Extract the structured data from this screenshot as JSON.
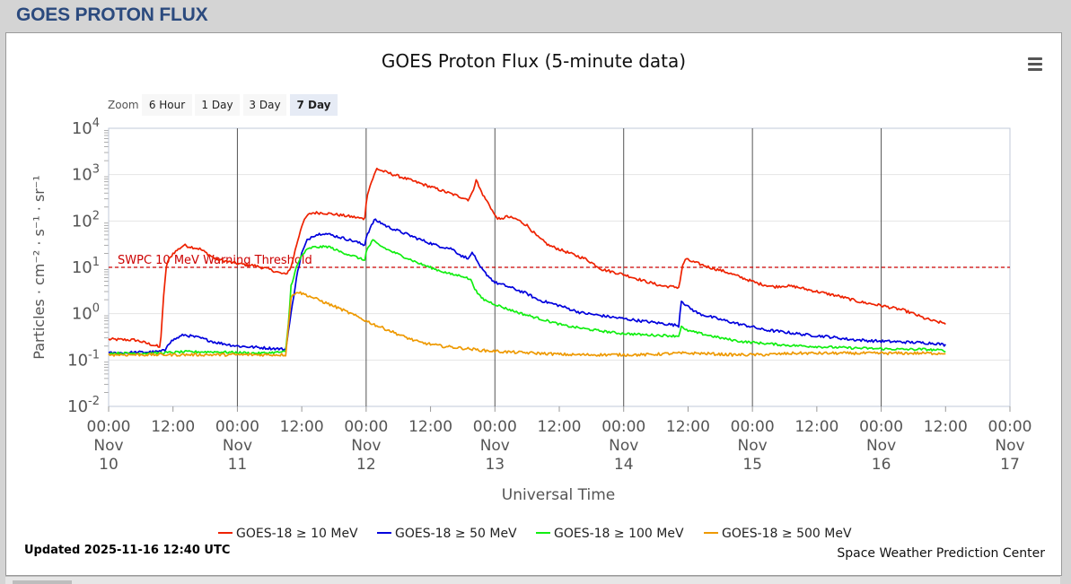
{
  "page": {
    "heading": "GOES PROTON FLUX"
  },
  "chart_data": {
    "type": "line",
    "title": "GOES Proton Flux (5-minute data)",
    "xlabel": "Universal Time",
    "ylabel": "Particles · cm⁻² · s⁻¹ · sr⁻¹",
    "yscale": "log",
    "ylim_exponents": [
      -2,
      4
    ],
    "y_tick_labels": [
      {
        "exp": 4,
        "base": "10",
        "sup": "4"
      },
      {
        "exp": 3,
        "base": "10",
        "sup": "3"
      },
      {
        "exp": 2,
        "base": "10",
        "sup": "2"
      },
      {
        "exp": 1,
        "base": "10",
        "sup": "1"
      },
      {
        "exp": 0,
        "base": "10",
        "sup": "0"
      },
      {
        "exp": -1,
        "base": "10",
        "sup": "-1"
      },
      {
        "exp": -2,
        "base": "10",
        "sup": "-2"
      }
    ],
    "x_range_hours": [
      0,
      168
    ],
    "x_ticks": [
      {
        "t": 0,
        "time": "00:00",
        "month": "Nov",
        "day": "10"
      },
      {
        "t": 12,
        "time": "12:00"
      },
      {
        "t": 24,
        "time": "00:00",
        "month": "Nov",
        "day": "11"
      },
      {
        "t": 36,
        "time": "12:00"
      },
      {
        "t": 48,
        "time": "00:00",
        "month": "Nov",
        "day": "12"
      },
      {
        "t": 60,
        "time": "12:00"
      },
      {
        "t": 72,
        "time": "00:00",
        "month": "Nov",
        "day": "13"
      },
      {
        "t": 84,
        "time": "12:00"
      },
      {
        "t": 96,
        "time": "00:00",
        "month": "Nov",
        "day": "14"
      },
      {
        "t": 108,
        "time": "12:00"
      },
      {
        "t": 120,
        "time": "00:00",
        "month": "Nov",
        "day": "15"
      },
      {
        "t": 132,
        "time": "12:00"
      },
      {
        "t": 144,
        "time": "00:00",
        "month": "Nov",
        "day": "16"
      },
      {
        "t": 156,
        "time": "12:00"
      },
      {
        "t": 168,
        "time": "00:00",
        "month": "Nov",
        "day": "17"
      }
    ],
    "day_divider_hours": [
      24,
      48,
      72,
      96,
      120,
      144
    ],
    "threshold": {
      "value": 10,
      "label": "SWPC 10 MeV Warning Threshold",
      "color": "#cc0000"
    },
    "series": [
      {
        "name": "GOES-18 ≥ 10 MeV",
        "color": "#ee2200",
        "noise": 0.03,
        "points": [
          [
            0,
            0.28
          ],
          [
            5,
            0.27
          ],
          [
            9,
            0.2
          ],
          [
            9.6,
            0.18
          ],
          [
            10.2,
            2
          ],
          [
            10.8,
            12
          ],
          [
            12,
            20
          ],
          [
            14,
            30
          ],
          [
            17,
            25
          ],
          [
            20,
            15
          ],
          [
            24,
            12
          ],
          [
            27,
            11
          ],
          [
            30,
            9
          ],
          [
            32,
            7.5
          ],
          [
            33,
            7
          ],
          [
            34,
            10
          ],
          [
            35,
            30
          ],
          [
            36,
            80
          ],
          [
            37,
            130
          ],
          [
            38,
            150
          ],
          [
            40,
            150
          ],
          [
            43,
            135
          ],
          [
            46,
            120
          ],
          [
            47.7,
            110
          ],
          [
            48.2,
            380
          ],
          [
            49,
            700
          ],
          [
            50,
            1350
          ],
          [
            51,
            1200
          ],
          [
            52,
            1100
          ],
          [
            55,
            850
          ],
          [
            58,
            650
          ],
          [
            61,
            500
          ],
          [
            64,
            380
          ],
          [
            66,
            320
          ],
          [
            67,
            290
          ],
          [
            67.8,
            400
          ],
          [
            68.5,
            800
          ],
          [
            69,
            550
          ],
          [
            70,
            330
          ],
          [
            71,
            220
          ],
          [
            72,
            130
          ],
          [
            73,
            105
          ],
          [
            74,
            125
          ],
          [
            76,
            110
          ],
          [
            78,
            80
          ],
          [
            80,
            45
          ],
          [
            82,
            30
          ],
          [
            86,
            20
          ],
          [
            89,
            15
          ],
          [
            92,
            9
          ],
          [
            96,
            7
          ],
          [
            100,
            5
          ],
          [
            103,
            4
          ],
          [
            105,
            3.8
          ],
          [
            106.3,
            3.7
          ],
          [
            106.9,
            10
          ],
          [
            107.5,
            15
          ],
          [
            109,
            13
          ],
          [
            112,
            10
          ],
          [
            115,
            8
          ],
          [
            118,
            6
          ],
          [
            121,
            4.5
          ],
          [
            124,
            3.8
          ],
          [
            126,
            4
          ],
          [
            128,
            3.8
          ],
          [
            132,
            3
          ],
          [
            136,
            2.4
          ],
          [
            140,
            1.8
          ],
          [
            144,
            1.5
          ],
          [
            148,
            1.2
          ],
          [
            150,
            1
          ],
          [
            152,
            0.8
          ],
          [
            154,
            0.68
          ],
          [
            156,
            0.62
          ]
        ]
      },
      {
        "name": "GOES-18 ≥ 50 MeV",
        "color": "#0000dd",
        "noise": 0.03,
        "points": [
          [
            0,
            0.14
          ],
          [
            9,
            0.15
          ],
          [
            10.5,
            0.16
          ],
          [
            11,
            0.22
          ],
          [
            12,
            0.27
          ],
          [
            14,
            0.35
          ],
          [
            17,
            0.3
          ],
          [
            20,
            0.24
          ],
          [
            24,
            0.2
          ],
          [
            30,
            0.18
          ],
          [
            33,
            0.17
          ],
          [
            34,
            1
          ],
          [
            35,
            6
          ],
          [
            36,
            20
          ],
          [
            37,
            38
          ],
          [
            38,
            48
          ],
          [
            40,
            55
          ],
          [
            43,
            45
          ],
          [
            46,
            36
          ],
          [
            47.7,
            30
          ],
          [
            48.1,
            50
          ],
          [
            48.8,
            70
          ],
          [
            49.5,
            105
          ],
          [
            50.5,
            95
          ],
          [
            52,
            75
          ],
          [
            55,
            55
          ],
          [
            58,
            40
          ],
          [
            61,
            30
          ],
          [
            64,
            25
          ],
          [
            66,
            17
          ],
          [
            67.3,
            16
          ],
          [
            67.8,
            22
          ],
          [
            68.4,
            15
          ],
          [
            69,
            11
          ],
          [
            70,
            8
          ],
          [
            72,
            4.7
          ],
          [
            74,
            4
          ],
          [
            76,
            3.3
          ],
          [
            78,
            2.7
          ],
          [
            80,
            2
          ],
          [
            84,
            1.5
          ],
          [
            88,
            1.05
          ],
          [
            92,
            0.9
          ],
          [
            96,
            0.78
          ],
          [
            100,
            0.68
          ],
          [
            104,
            0.6
          ],
          [
            106.3,
            0.55
          ],
          [
            106.7,
            2
          ],
          [
            107,
            1.8
          ],
          [
            108,
            1.4
          ],
          [
            110,
            1
          ],
          [
            114,
            0.75
          ],
          [
            118,
            0.58
          ],
          [
            120,
            0.52
          ],
          [
            122,
            0.45
          ],
          [
            126,
            0.4
          ],
          [
            130,
            0.35
          ],
          [
            134,
            0.32
          ],
          [
            138,
            0.28
          ],
          [
            142,
            0.26
          ],
          [
            146,
            0.25
          ],
          [
            150,
            0.24
          ],
          [
            154,
            0.23
          ],
          [
            156,
            0.21
          ]
        ]
      },
      {
        "name": "GOES-18 ≥ 100 MeV",
        "color": "#11ee11",
        "noise": 0.025,
        "points": [
          [
            0,
            0.14
          ],
          [
            9,
            0.14
          ],
          [
            14,
            0.15
          ],
          [
            20,
            0.15
          ],
          [
            28,
            0.14
          ],
          [
            33,
            0.15
          ],
          [
            33.6,
            0.8
          ],
          [
            34,
            4
          ],
          [
            35,
            10
          ],
          [
            36,
            18
          ],
          [
            37,
            24
          ],
          [
            38,
            27
          ],
          [
            41,
            28
          ],
          [
            43,
            22
          ],
          [
            46,
            17
          ],
          [
            47.7,
            14
          ],
          [
            48.1,
            24
          ],
          [
            48.7,
            30
          ],
          [
            49.2,
            38
          ],
          [
            50.5,
            30
          ],
          [
            52,
            24
          ],
          [
            55,
            17
          ],
          [
            58,
            12
          ],
          [
            61,
            9
          ],
          [
            64,
            7
          ],
          [
            66,
            6.5
          ],
          [
            67.3,
            5.5
          ],
          [
            67.7,
            5
          ],
          [
            68.4,
            3.2
          ],
          [
            69,
            2.5
          ],
          [
            70,
            2
          ],
          [
            72,
            1.6
          ],
          [
            74,
            1.3
          ],
          [
            77,
            1
          ],
          [
            80,
            0.8
          ],
          [
            85,
            0.55
          ],
          [
            90,
            0.45
          ],
          [
            95,
            0.38
          ],
          [
            100,
            0.35
          ],
          [
            106.3,
            0.33
          ],
          [
            106.7,
            0.55
          ],
          [
            107.3,
            0.45
          ],
          [
            110,
            0.38
          ],
          [
            114,
            0.3
          ],
          [
            118,
            0.25
          ],
          [
            122,
            0.23
          ],
          [
            126,
            0.21
          ],
          [
            130,
            0.2
          ],
          [
            134,
            0.19
          ],
          [
            140,
            0.18
          ],
          [
            148,
            0.17
          ],
          [
            152,
            0.17
          ],
          [
            156,
            0.16
          ]
        ]
      },
      {
        "name": "GOES-18 ≥ 500 MeV",
        "color": "#ee9900",
        "noise": 0.03,
        "points": [
          [
            0,
            0.13
          ],
          [
            9,
            0.13
          ],
          [
            14,
            0.13
          ],
          [
            20,
            0.13
          ],
          [
            28,
            0.13
          ],
          [
            33,
            0.13
          ],
          [
            33.6,
            0.7
          ],
          [
            34,
            2.2
          ],
          [
            35,
            3
          ],
          [
            37,
            2.5
          ],
          [
            40,
            1.8
          ],
          [
            43,
            1.3
          ],
          [
            46,
            0.9
          ],
          [
            48,
            0.7
          ],
          [
            50,
            0.55
          ],
          [
            52,
            0.45
          ],
          [
            55,
            0.32
          ],
          [
            58,
            0.24
          ],
          [
            62,
            0.2
          ],
          [
            66,
            0.18
          ],
          [
            70,
            0.16
          ],
          [
            74,
            0.15
          ],
          [
            80,
            0.14
          ],
          [
            86,
            0.13
          ],
          [
            92,
            0.13
          ],
          [
            100,
            0.13
          ],
          [
            106,
            0.14
          ],
          [
            110,
            0.14
          ],
          [
            116,
            0.13
          ],
          [
            122,
            0.13
          ],
          [
            128,
            0.14
          ],
          [
            134,
            0.14
          ],
          [
            140,
            0.14
          ],
          [
            146,
            0.14
          ],
          [
            152,
            0.14
          ],
          [
            156,
            0.14
          ]
        ]
      }
    ]
  },
  "zoom": {
    "label": "Zoom",
    "buttons": [
      "6 Hour",
      "1 Day",
      "3 Day",
      "7 Day"
    ],
    "active": "7 Day"
  },
  "footer": {
    "updated": "Updated 2025-11-16 12:40 UTC",
    "credit": "Space Weather Prediction Center"
  }
}
